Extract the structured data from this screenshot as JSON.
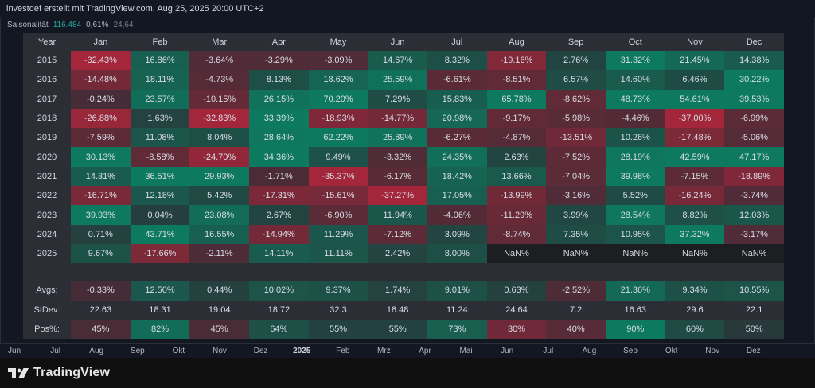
{
  "header": {
    "title": "investdef erstellt mit TradingView.com, Aug 25, 2025 20:00 UTC+2"
  },
  "indicator": {
    "name": "Saisonalität",
    "value1": "116.484",
    "value2": "0,61%",
    "value3": "24,64"
  },
  "table": {
    "columns": [
      "Year",
      "Jan",
      "Feb",
      "Mar",
      "Apr",
      "May",
      "Jun",
      "Jul",
      "Aug",
      "Sep",
      "Oct",
      "Nov",
      "Dec"
    ],
    "rows": [
      {
        "year": "2015",
        "values": [
          "-32.43%",
          "16.86%",
          "-3.64%",
          "-3.29%",
          "-3.09%",
          "14.67%",
          "8.32%",
          "-19.16%",
          "2.76%",
          "31.32%",
          "21.45%",
          "14.38%"
        ]
      },
      {
        "year": "2016",
        "values": [
          "-14.48%",
          "18.11%",
          "-4.73%",
          "8.13%",
          "18.62%",
          "25.59%",
          "-6.61%",
          "-8.51%",
          "6.57%",
          "14.60%",
          "6.46%",
          "30.22%"
        ]
      },
      {
        "year": "2017",
        "values": [
          "-0.24%",
          "23.57%",
          "-10.15%",
          "26.15%",
          "70.20%",
          "7.29%",
          "15.83%",
          "65.78%",
          "-8.62%",
          "48.73%",
          "54.61%",
          "39.53%"
        ]
      },
      {
        "year": "2018",
        "values": [
          "-26.88%",
          "1.63%",
          "-32.83%",
          "33.39%",
          "-18.93%",
          "-14.77%",
          "20.98%",
          "-9.17%",
          "-5.98%",
          "-4.46%",
          "-37.00%",
          "-6.99%"
        ]
      },
      {
        "year": "2019",
        "values": [
          "-7.59%",
          "11.08%",
          "8.04%",
          "28.64%",
          "62.22%",
          "25.89%",
          "-6.27%",
          "-4.87%",
          "-13.51%",
          "10.26%",
          "-17.48%",
          "-5.06%"
        ]
      },
      {
        "year": "2020",
        "values": [
          "30.13%",
          "-8.58%",
          "-24.70%",
          "34.36%",
          "9.49%",
          "-3.32%",
          "24.35%",
          "2.63%",
          "-7.52%",
          "28.19%",
          "42.59%",
          "47.17%"
        ]
      },
      {
        "year": "2021",
        "values": [
          "14.31%",
          "36.51%",
          "29.93%",
          "-1.71%",
          "-35.37%",
          "-6.17%",
          "18.42%",
          "13.66%",
          "-7.04%",
          "39.98%",
          "-7.15%",
          "-18.89%"
        ]
      },
      {
        "year": "2022",
        "values": [
          "-16.71%",
          "12.18%",
          "5.42%",
          "-17.31%",
          "-15.61%",
          "-37.27%",
          "17.05%",
          "-13.99%",
          "-3.16%",
          "5.52%",
          "-16.24%",
          "-3.74%"
        ]
      },
      {
        "year": "2023",
        "values": [
          "39.93%",
          "0.04%",
          "23.08%",
          "2.67%",
          "-6.90%",
          "11.94%",
          "-4.06%",
          "-11.29%",
          "3.99%",
          "28.54%",
          "8.82%",
          "12.03%"
        ]
      },
      {
        "year": "2024",
        "values": [
          "0.71%",
          "43.71%",
          "16.55%",
          "-14.94%",
          "11.29%",
          "-7.12%",
          "3.09%",
          "-8.74%",
          "7.35%",
          "10.95%",
          "37.32%",
          "-3.17%"
        ]
      },
      {
        "year": "2025",
        "values": [
          "9.67%",
          "-17.66%",
          "-2.11%",
          "14.11%",
          "11.11%",
          "2.42%",
          "8.00%",
          "NaN%",
          "NaN%",
          "NaN%",
          "NaN%",
          "NaN%"
        ]
      }
    ],
    "summary": [
      {
        "label": "Avgs:",
        "kind": "pct",
        "values": [
          "-0.33%",
          "12.50%",
          "0.44%",
          "10.02%",
          "9.37%",
          "1.74%",
          "9.01%",
          "0.63%",
          "-2.52%",
          "21.36%",
          "9.34%",
          "10.55%"
        ]
      },
      {
        "label": "StDev:",
        "kind": "plain",
        "values": [
          "22.63",
          "18.31",
          "19.04",
          "18.72",
          "32.3",
          "18.48",
          "11.24",
          "24.64",
          "7.2",
          "16.63",
          "29.6",
          "22.1"
        ]
      },
      {
        "label": "Pos%:",
        "kind": "pos",
        "values": [
          "45%",
          "82%",
          "45%",
          "64%",
          "55%",
          "55%",
          "73%",
          "30%",
          "40%",
          "90%",
          "60%",
          "50%"
        ]
      }
    ]
  },
  "colors": {
    "positive": "#0d7a5f",
    "negative": "#a3263a",
    "neutral": "#2b2e35",
    "nan": "#1c1e22"
  },
  "time_axis": {
    "labels": [
      "Jun",
      "Jul",
      "Aug",
      "Sep",
      "Okt",
      "Nov",
      "Dez",
      "2025",
      "Feb",
      "Mrz",
      "Apr",
      "Mai",
      "Jun",
      "Jul",
      "Aug",
      "Sep",
      "Okt",
      "Nov",
      "Dez"
    ],
    "bold": [
      "2025"
    ]
  },
  "brand": {
    "name": "TradingView"
  }
}
